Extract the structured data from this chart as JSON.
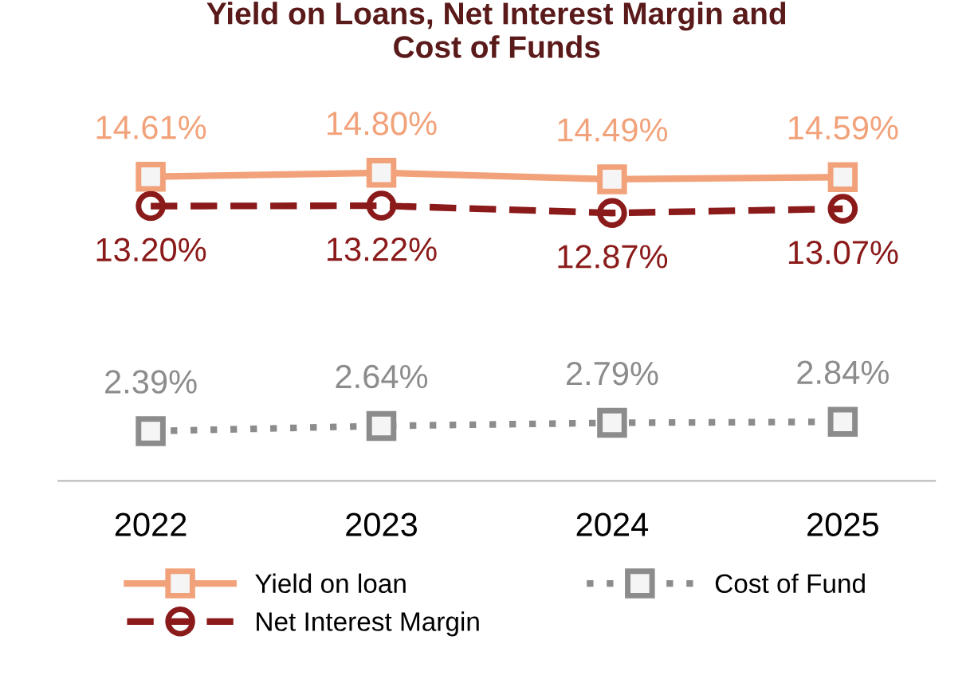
{
  "chart_data": {
    "type": "line",
    "title": "Yield on Loans, Net Interest Margin and\nCost of Funds",
    "categories": [
      "2022",
      "2023",
      "2024",
      "2025"
    ],
    "series": [
      {
        "name": "Yield on loan",
        "color": "#f2a27a",
        "values": [
          14.61,
          14.8,
          14.49,
          14.59
        ],
        "marker": "square",
        "line_style": "solid",
        "value_labels": [
          "14.61%",
          "14.80%",
          "14.49%",
          "14.59%"
        ]
      },
      {
        "name": "Net Interest Margin",
        "color": "#8b1a1a",
        "values": [
          13.2,
          13.22,
          12.87,
          13.07
        ],
        "marker": "circle",
        "line_style": "dashed",
        "value_labels": [
          "13.20%",
          "13.22%",
          "12.87%",
          "13.07%"
        ]
      },
      {
        "name": "Cost of Fund",
        "color": "#8c8c8c",
        "values": [
          2.39,
          2.64,
          2.79,
          2.84
        ],
        "marker": "square",
        "line_style": "dotted",
        "value_labels": [
          "2.39%",
          "2.64%",
          "2.79%",
          "2.84%"
        ]
      }
    ],
    "legend": "bottom",
    "grid": false
  }
}
